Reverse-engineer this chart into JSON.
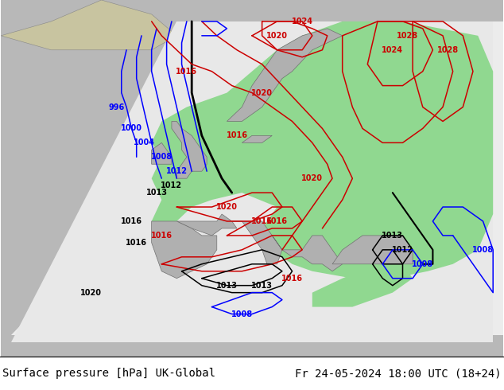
{
  "title_left": "Surface pressure [hPa] UK-Global",
  "title_right": "Fr 24-05-2024 18:00 UTC (18+24)",
  "bg_land": "#c8c4a0",
  "bg_sea": "#b8b8b8",
  "domain_fill": "#e8e8ec",
  "green_fill": "#90d890",
  "footer_fontsize": 10,
  "label_fontsize": 7,
  "blue": "#0000ff",
  "red": "#cc0000",
  "black": "#000000",
  "green_label": "#00aa00",
  "isobar_lw": 1.1
}
